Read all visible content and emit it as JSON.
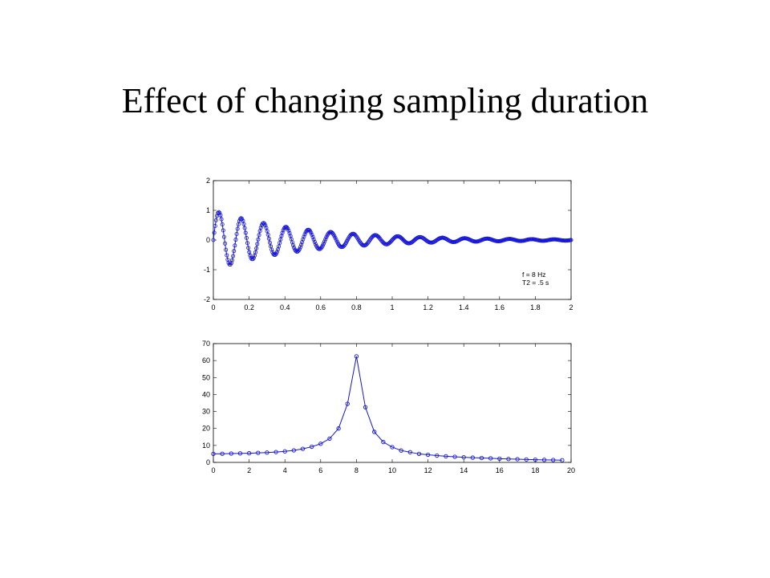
{
  "slide": {
    "title": "Effect of changing sampling duration"
  },
  "colors": {
    "series": "#1515d8",
    "axes": "#000000",
    "background": "#ffffff"
  },
  "chart_data": [
    {
      "type": "line",
      "title": "",
      "xlabel": "",
      "ylabel": "",
      "xlim": [
        0,
        2
      ],
      "ylim": [
        -2,
        2
      ],
      "xticks": [
        0,
        0.2,
        0.4,
        0.6,
        0.8,
        1,
        1.2,
        1.4,
        1.6,
        1.8,
        2
      ],
      "xtick_labels": [
        "0",
        "0.2",
        "0.4",
        "0.6",
        "0.8",
        "1",
        "1.2",
        "1.4",
        "1.6",
        "1.8",
        "2"
      ],
      "yticks": [
        -2,
        -1,
        0,
        1,
        2
      ],
      "ytick_labels": [
        "-2",
        "-1",
        "0",
        "1",
        "2"
      ],
      "grid": false,
      "marker": "circle",
      "signal": {
        "description": "damped sine sampled densely",
        "frequency_hz": 8,
        "decay_time_s": 0.5,
        "amplitude": 1,
        "x_start": 0,
        "x_end": 2,
        "n_samples": 400
      },
      "annotations": [
        "f = 8 Hz",
        "T2 = .5 s"
      ]
    },
    {
      "type": "line",
      "title": "",
      "xlabel": "",
      "ylabel": "",
      "xlim": [
        0,
        20
      ],
      "ylim": [
        0,
        70
      ],
      "xticks": [
        0,
        2,
        4,
        6,
        8,
        10,
        12,
        14,
        16,
        18,
        20
      ],
      "xtick_labels": [
        "0",
        "2",
        "4",
        "6",
        "8",
        "10",
        "12",
        "14",
        "16",
        "18",
        "20"
      ],
      "yticks": [
        0,
        10,
        20,
        30,
        40,
        50,
        60,
        70
      ],
      "ytick_labels": [
        "0",
        "10",
        "20",
        "30",
        "40",
        "50",
        "60",
        "70"
      ],
      "grid": false,
      "marker": "circle",
      "series": [
        {
          "x": [
            0,
            0.5,
            1,
            1.5,
            2,
            2.5,
            3,
            3.5,
            4,
            4.5,
            5,
            5.5,
            6,
            6.5,
            7,
            7.5,
            8,
            8.5,
            9,
            9.5,
            10,
            10.5,
            11,
            11.5,
            12,
            12.5,
            13,
            13.5,
            14,
            14.5,
            15,
            15.5,
            16,
            16.5,
            17,
            17.5,
            18,
            18.5,
            19,
            19.5
          ],
          "values": [
            5,
            5.1,
            5.2,
            5.3,
            5.4,
            5.6,
            5.8,
            6.1,
            6.5,
            7.1,
            8,
            9.2,
            11,
            14,
            20,
            34.5,
            62.5,
            32.5,
            18,
            12,
            9,
            7,
            6,
            5,
            4.5,
            4,
            3.6,
            3.3,
            3,
            2.8,
            2.6,
            2.4,
            2.2,
            2,
            1.9,
            1.7,
            1.6,
            1.5,
            1.4,
            1.3
          ]
        }
      ]
    }
  ]
}
